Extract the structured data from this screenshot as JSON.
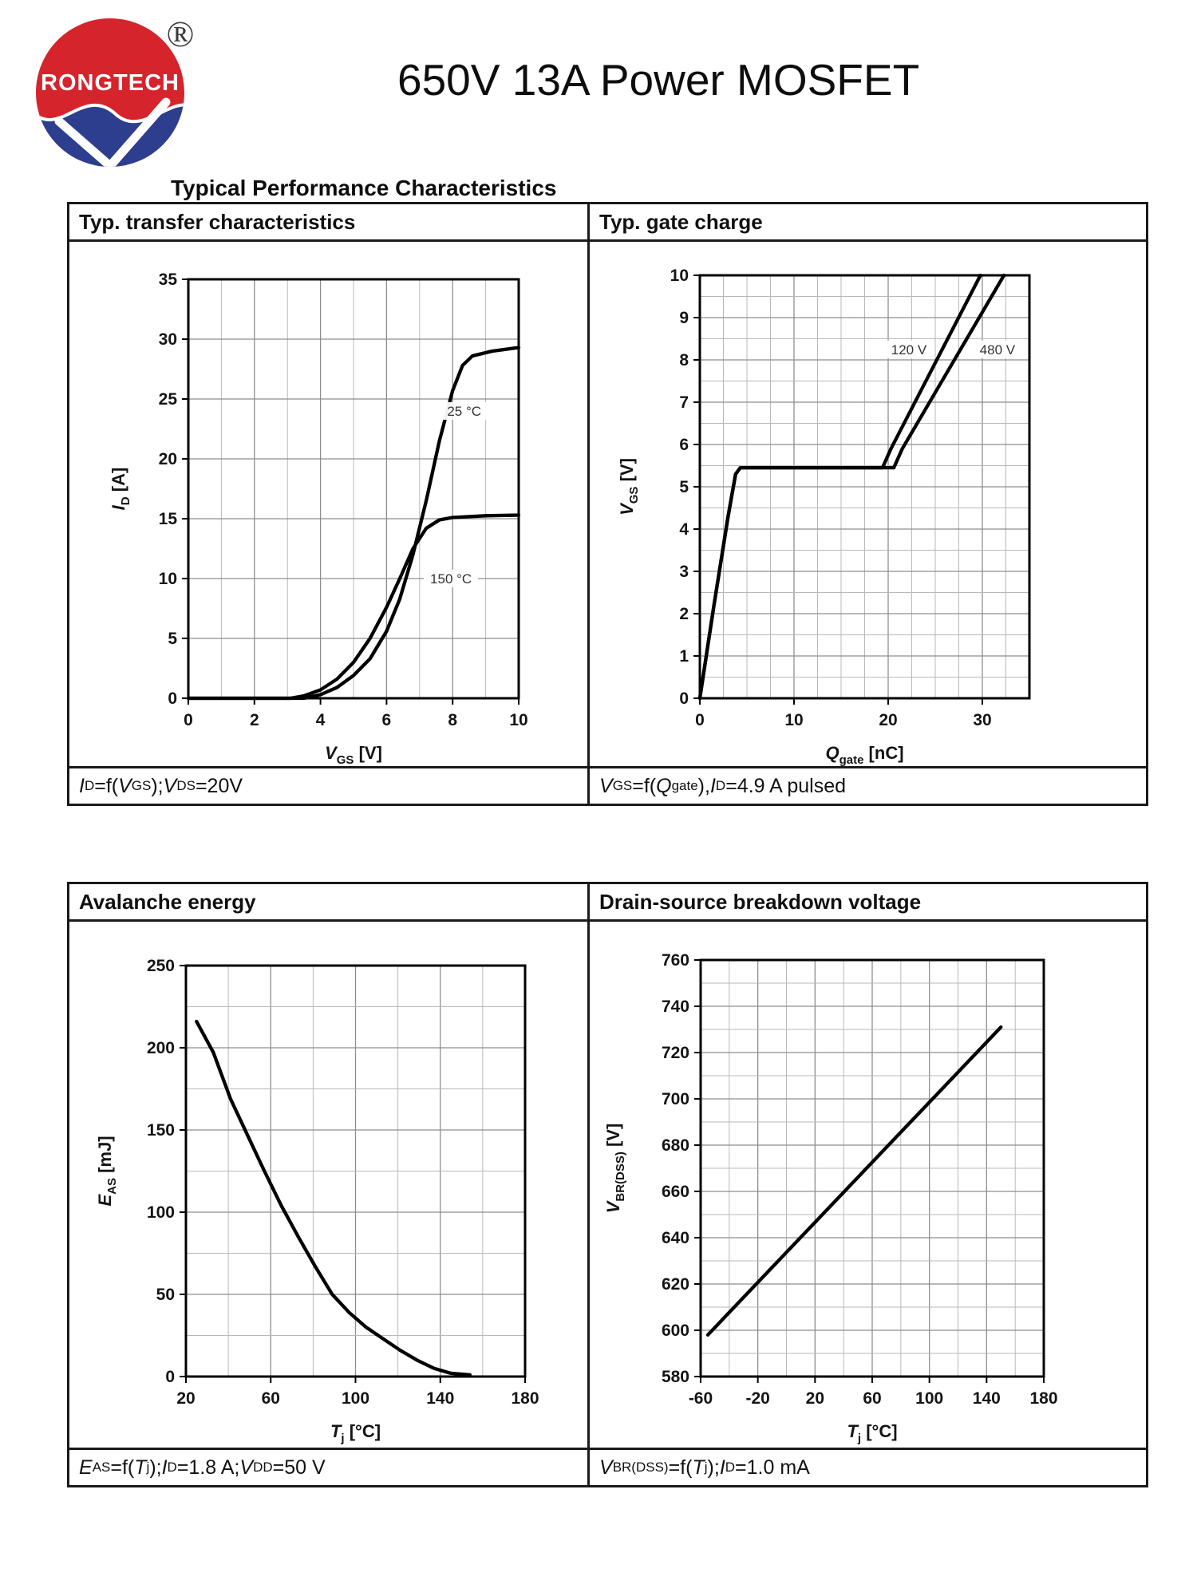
{
  "page": {
    "brand": {
      "logo_text": "RONGTECH",
      "registered_mark": "®",
      "logo_red": "#d5242c",
      "logo_blue": "#2c3e8d"
    },
    "title": "650V 13A Power MOSFET",
    "section_heading": "Typical Performance Characteristics"
  },
  "panels": [
    {
      "header": "Typ. transfer characteristics",
      "caption": "|I|{D}=f(|V|{GS}); |V|{DS}=20V"
    },
    {
      "header": "Typ. gate charge",
      "caption": "|V|{GS}=f(|Q|{gate}), |I|{D}=4.9 A pulsed"
    },
    {
      "header": "Avalanche energy",
      "caption": "|E|{AS}=f(|T|{j}); |I|{D}=1.8 A; |V|{DD}=50 V"
    },
    {
      "header": "Drain-source breakdown voltage",
      "caption": "|V|{BR(DSS)}=f(|T|{j}); |I|{D}=1.0 mA"
    }
  ],
  "chart_data": [
    {
      "type": "line",
      "title": "Typ. transfer characteristics",
      "xlabel": "|V|{GS} [V]",
      "ylabel": "|I|{D} [A]",
      "xlim": [
        0,
        10
      ],
      "ylim": [
        0,
        35
      ],
      "xticks": [
        0,
        2,
        4,
        6,
        8,
        10
      ],
      "yticks": [
        0,
        5,
        10,
        15,
        20,
        25,
        30,
        35
      ],
      "x_minor": 1,
      "y_minor": null,
      "grid": true,
      "series": [
        {
          "name": "25 °C",
          "points": [
            [
              0,
              0
            ],
            [
              3.5,
              0
            ],
            [
              4,
              0.3
            ],
            [
              4.5,
              0.9
            ],
            [
              5,
              1.9
            ],
            [
              5.5,
              3.3
            ],
            [
              6,
              5.6
            ],
            [
              6.4,
              8.3
            ],
            [
              6.8,
              12
            ],
            [
              7.2,
              16.5
            ],
            [
              7.6,
              21.5
            ],
            [
              8,
              25.7
            ],
            [
              8.3,
              27.8
            ],
            [
              8.6,
              28.6
            ],
            [
              9.2,
              29
            ],
            [
              10,
              29.3
            ]
          ]
        },
        {
          "name": "150 °C",
          "points": [
            [
              0,
              0
            ],
            [
              3.1,
              0
            ],
            [
              3.5,
              0.2
            ],
            [
              4,
              0.7
            ],
            [
              4.5,
              1.6
            ],
            [
              5,
              3
            ],
            [
              5.5,
              5
            ],
            [
              6,
              7.6
            ],
            [
              6.4,
              10
            ],
            [
              6.8,
              12.5
            ],
            [
              7.2,
              14.2
            ],
            [
              7.6,
              14.9
            ],
            [
              8,
              15.1
            ],
            [
              9,
              15.25
            ],
            [
              10,
              15.3
            ]
          ]
        }
      ],
      "curve_labels": [
        {
          "text": "25 °C",
          "x": 8.35,
          "y": 24
        },
        {
          "text": "150 °C",
          "x": 7.95,
          "y": 10
        }
      ]
    },
    {
      "type": "line",
      "title": "Typ. gate charge",
      "xlabel": "|Q|{gate} [nC]",
      "ylabel": "|V|{GS} [V]",
      "xlim": [
        0,
        35
      ],
      "ylim": [
        0,
        10
      ],
      "xticks": [
        0,
        10,
        20,
        30
      ],
      "yticks": [
        0,
        1,
        2,
        3,
        4,
        5,
        6,
        7,
        8,
        9,
        10
      ],
      "x_minor": 2.5,
      "y_minor": 0.5,
      "grid": true,
      "series": [
        {
          "name": "120 V",
          "points": [
            [
              0,
              0
            ],
            [
              1.5,
              2.2
            ],
            [
              3,
              4.3
            ],
            [
              3.8,
              5.3
            ],
            [
              4.3,
              5.45
            ],
            [
              19.4,
              5.45
            ],
            [
              20.3,
              5.9
            ],
            [
              29.8,
              10
            ]
          ]
        },
        {
          "name": "480 V",
          "points": [
            [
              0,
              0
            ],
            [
              1.5,
              2.2
            ],
            [
              3,
              4.3
            ],
            [
              3.8,
              5.3
            ],
            [
              4.3,
              5.45
            ],
            [
              20.6,
              5.45
            ],
            [
              21.5,
              5.9
            ],
            [
              32.3,
              10
            ]
          ]
        }
      ],
      "curve_labels": [
        {
          "text": "120 V",
          "x": 22.2,
          "y": 8.25
        },
        {
          "text": "480 V",
          "x": 31.6,
          "y": 8.25
        }
      ]
    },
    {
      "type": "line",
      "title": "Avalanche energy",
      "xlabel": "|T|{j} [°C]",
      "ylabel": "|E|{AS} [mJ]",
      "xlim": [
        20,
        180
      ],
      "ylim": [
        0,
        250
      ],
      "xticks": [
        20,
        60,
        100,
        140,
        180
      ],
      "yticks": [
        0,
        50,
        100,
        150,
        200,
        250
      ],
      "x_minor": 20,
      "y_minor": 25,
      "grid": true,
      "series": [
        {
          "name": "EAS",
          "points": [
            [
              25,
              216
            ],
            [
              33,
              197
            ],
            [
              41,
              169
            ],
            [
              49,
              147
            ],
            [
              57,
              125
            ],
            [
              65,
              104
            ],
            [
              73,
              85
            ],
            [
              81,
              67
            ],
            [
              89,
              50
            ],
            [
              97,
              39
            ],
            [
              105,
              30
            ],
            [
              113,
              23
            ],
            [
              121,
              16
            ],
            [
              129,
              10
            ],
            [
              137,
              5
            ],
            [
              145,
              2
            ],
            [
              154,
              1
            ]
          ]
        }
      ],
      "curve_labels": []
    },
    {
      "type": "line",
      "title": "Drain-source breakdown voltage",
      "xlabel": "|T|{j} [°C]",
      "ylabel": "|V|{BR(DSS)} [V]",
      "xlim": [
        -60,
        180
      ],
      "ylim": [
        580,
        760
      ],
      "xticks": [
        -60,
        -20,
        20,
        60,
        100,
        140,
        180
      ],
      "yticks": [
        580,
        600,
        620,
        640,
        660,
        680,
        700,
        720,
        740,
        760
      ],
      "x_minor": 20,
      "y_minor": 10,
      "grid": true,
      "series": [
        {
          "name": "VBR(DSS)",
          "points": [
            [
              -55,
              598
            ],
            [
              150,
              731
            ]
          ]
        }
      ],
      "curve_labels": []
    }
  ]
}
